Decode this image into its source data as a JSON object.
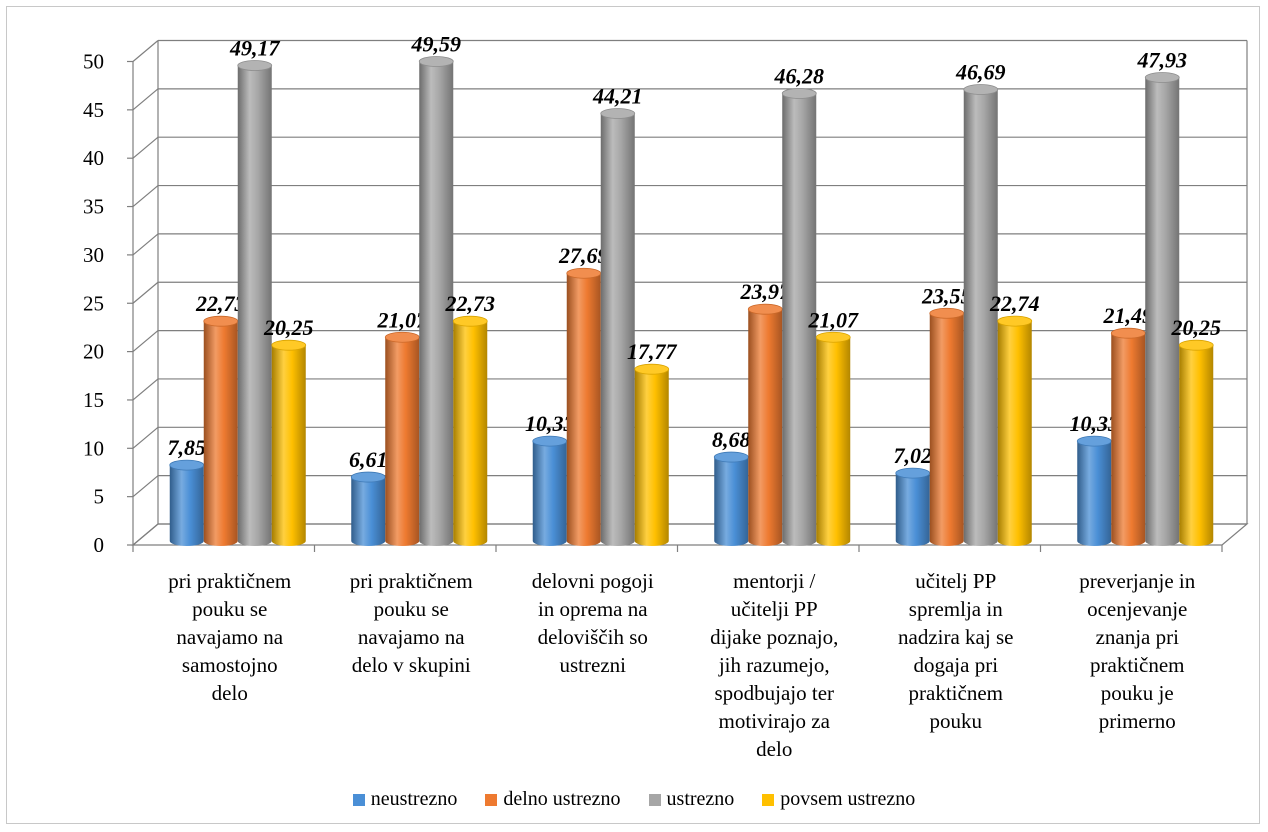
{
  "chart_data": {
    "type": "bar",
    "style": "3d-cylinder",
    "categories": [
      "pri praktičnem pouku se navajamo na samostojno delo",
      "pri praktičnem pouku se navajamo na delo v skupini",
      "delovni pogoji in oprema na deloviščih so ustrezni",
      "mentorji / učitelji PP dijake poznajo, jih razumejo, spodbujajo ter motivirajo za delo",
      "učitelj PP spremlja in nadzira kaj se dogaja pri praktičnem pouku",
      "preverjanje in ocenjevanje znanja pri praktičnem pouku je primerno"
    ],
    "category_lines": [
      [
        "pri praktičnem",
        "pouku se",
        "navajamo na",
        "samostojno",
        "delo"
      ],
      [
        "pri praktičnem",
        "pouku se",
        "navajamo na",
        "delo v skupini"
      ],
      [
        "delovni pogoji",
        "in oprema na",
        "deloviščih so",
        "ustrezni"
      ],
      [
        "mentorji /",
        "učitelji PP",
        "dijake poznajo,",
        "jih razumejo,",
        "spodbujajo ter",
        "motivirajo za",
        "delo"
      ],
      [
        "učitelj PP",
        "spremlja in",
        "nadzira kaj se",
        "dogaja pri",
        "praktičnem",
        "pouku"
      ],
      [
        "preverjanje in",
        "ocenjevanje",
        "znanja pri",
        "praktičnem",
        "pouku je",
        "primerno"
      ]
    ],
    "series": [
      {
        "name": "neustrezno",
        "color": "#4a8fd6",
        "values": [
          7.85,
          6.61,
          10.33,
          8.68,
          7.02,
          10.33
        ],
        "labels": [
          "7,85",
          "6,61",
          "10,33",
          "8,68",
          "7,02",
          "10,33"
        ]
      },
      {
        "name": "delno ustrezno",
        "color": "#ee7a30",
        "values": [
          22.73,
          21.07,
          27.69,
          23.97,
          23.55,
          21.49
        ],
        "labels": [
          "22,73",
          "21,07",
          "27,69",
          "23,97",
          "23,55",
          "21,49"
        ]
      },
      {
        "name": "ustrezno",
        "color": "#a6a6a6",
        "values": [
          49.17,
          49.59,
          44.21,
          46.28,
          46.69,
          47.93
        ],
        "labels": [
          "49,17",
          "49,59",
          "44,21",
          "46,28",
          "46,69",
          "47,93"
        ]
      },
      {
        "name": "povsem ustrezno",
        "color": "#ffc000",
        "values": [
          20.25,
          22.73,
          17.77,
          21.07,
          22.74,
          20.25
        ],
        "labels": [
          "20,25",
          "22,73",
          "17,77",
          "21,07",
          "22,74",
          "20,25"
        ]
      }
    ],
    "yticks": [
      "0",
      "5",
      "10",
      "15",
      "20",
      "25",
      "30",
      "35",
      "40",
      "45",
      "50"
    ],
    "ylim": [
      0,
      50
    ],
    "grid": true,
    "legend_position": "bottom"
  }
}
